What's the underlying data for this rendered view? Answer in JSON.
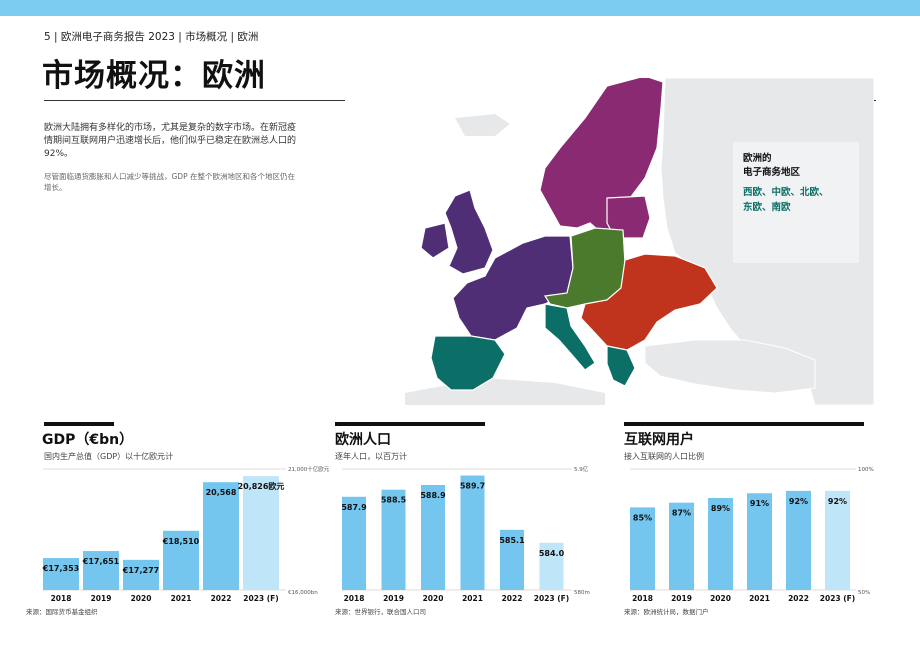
{
  "running_head": "5 | 欧洲电子商务报告 2023 | 市场概况 | 欧洲",
  "title": "市场概况：欧洲",
  "intro": {
    "paragraph": "欧洲大陆拥有多样化的市场，尤其是复杂的数字市场。在新冠疫情期间互联网用户迅速增长后，他们似乎已稳定在欧洲总人口的92%。",
    "note": "尽管面临通货膨胀和人口减少等挑战，GDP 在整个欧洲地区和各个地区仍在增长。"
  },
  "map": {
    "legend_title": "欧洲的\n电子商务地区",
    "legend_regions": "西欧、中欧、北欧、\n东欧、南欧",
    "colors": {
      "west": "#4f2e76",
      "central": "#4b7a2d",
      "north": "#8a2a72",
      "east": "#c0341d",
      "south": "#0b6f68",
      "other": "#e6e8ea",
      "sea": "#ffffff"
    }
  },
  "sections": {
    "gdp": {
      "title": "GDP（€bn）",
      "subtitle": "国内生产总值（GDP）以十亿欧元计",
      "source": "来源：国际货币基金组织"
    },
    "population": {
      "title": "欧洲人口",
      "subtitle": "逐年人口，以百万计",
      "source": "来源：世界银行，联合国人口司"
    },
    "internet": {
      "title": "互联网用户",
      "subtitle": "接入互联网的人口比例",
      "source": "来源：欧洲统计局，数据门户"
    }
  },
  "chart_data": [
    {
      "type": "bar",
      "title": "GDP（€bn）",
      "categories": [
        "2018",
        "2019",
        "2020",
        "2021",
        "2022",
        "2023 (F)"
      ],
      "values": [
        17353,
        17651,
        17277,
        18510,
        20568,
        20826
      ],
      "labels": [
        "€17,353",
        "€17,651",
        "€17,277",
        "€18,510",
        "20,568",
        "20,826欧元"
      ],
      "forecast_index": 5,
      "ylim": [
        16000,
        21000
      ],
      "axis_top_label": "21,000十亿欧元",
      "axis_bottom_label": "€16,000bn"
    },
    {
      "type": "bar",
      "title": "欧洲人口",
      "categories": [
        "2018",
        "2019",
        "2020",
        "2021",
        "2022",
        "2023 (F)"
      ],
      "values": [
        587.9,
        588.5,
        588.9,
        589.7,
        585.1,
        584.0
      ],
      "labels": [
        "587.9",
        "588.5",
        "588.9",
        "589.7",
        "585.1",
        "584.0"
      ],
      "forecast_index": 5,
      "ylim": [
        580,
        590
      ],
      "axis_top_label": "5.9亿",
      "axis_bottom_label": "580m"
    },
    {
      "type": "bar",
      "title": "互联网用户",
      "categories": [
        "2018",
        "2019",
        "2020",
        "2021",
        "2022",
        "2023 (F)"
      ],
      "values": [
        85,
        87,
        89,
        91,
        92,
        92
      ],
      "labels": [
        "85%",
        "87%",
        "89%",
        "91%",
        "92%",
        "92%"
      ],
      "forecast_index": 5,
      "ylim": [
        50,
        100
      ],
      "axis_top_label": "100%",
      "axis_bottom_label": "50%"
    }
  ]
}
